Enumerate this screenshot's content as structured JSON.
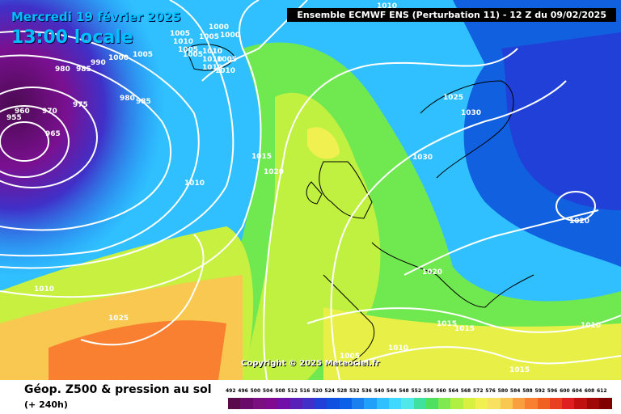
{
  "map": {
    "date_label": "Mercredi 19 février 2025",
    "time_label": "13:00 locale",
    "header": "Ensemble ECMWF ENS  (Perturbation 11)  -  12 Z du 09/02/2025",
    "copyright": "Copyright © 2025 Meteociel.fr",
    "footer_title": "Géop. Z500 & pression au sol",
    "footer_subtitle": "(+ 240h)",
    "pressure_labels": [
      "1010",
      "1005",
      "1010",
      "1005",
      "1000",
      "1000",
      "1005",
      "1005",
      "1010",
      "1010",
      "1005",
      "1010",
      "1010",
      "1005",
      "990",
      "1000",
      "980",
      "985",
      "980",
      "985",
      "960",
      "970",
      "975",
      "955",
      "965",
      "1010",
      "1015",
      "1020",
      "1025",
      "1030",
      "1030",
      "1020",
      "1020",
      "1010",
      "1025",
      "1015",
      "1015",
      "1005",
      "1010",
      "1015",
      "1010"
    ],
    "scale_values": [
      "492",
      "496",
      "500",
      "504",
      "508",
      "512",
      "516",
      "520",
      "524",
      "528",
      "532",
      "536",
      "540",
      "544",
      "548",
      "552",
      "556",
      "560",
      "564",
      "568",
      "572",
      "576",
      "580",
      "584",
      "588",
      "592",
      "596",
      "600",
      "604",
      "608",
      "612"
    ],
    "scale_colors": [
      "#5a0a4a",
      "#6a0a6a",
      "#7a1080",
      "#800a90",
      "#7010a8",
      "#5820b8",
      "#4030c8",
      "#2040d8",
      "#1050e0",
      "#0a60e8",
      "#1a80f0",
      "#20a0f8",
      "#30c0ff",
      "#40d8ff",
      "#50e8e8",
      "#40e0a0",
      "#50e060",
      "#80e850",
      "#b0f040",
      "#d8f040",
      "#f0f050",
      "#f8e060",
      "#f8c850",
      "#f8a040",
      "#f88030",
      "#f06020",
      "#e84020",
      "#e02020",
      "#c01010",
      "#a00808",
      "#800000"
    ],
    "colors": {
      "header_bg": "#000000",
      "overlay_text": "#00bfff"
    }
  }
}
